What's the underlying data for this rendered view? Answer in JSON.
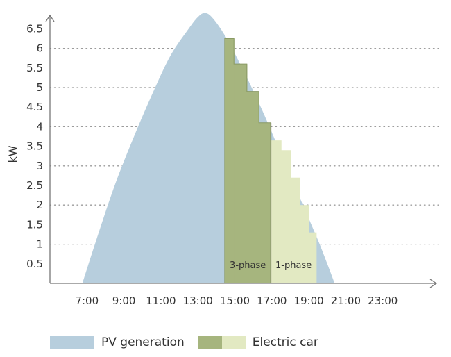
{
  "chart_data": {
    "type": "area",
    "title": "",
    "xlabel": "",
    "ylabel": "kW",
    "xlim": [
      5.0,
      25.0
    ],
    "ylim": [
      0,
      7.0
    ],
    "x_ticks": [
      "7:00",
      "9:00",
      "11:00",
      "13:00",
      "15:00",
      "17:00",
      "19:00",
      "21:00",
      "23:00"
    ],
    "x_tick_values": [
      7,
      9,
      11,
      13,
      15,
      17,
      19,
      21,
      23
    ],
    "y_ticks": [
      0.5,
      1,
      1.5,
      2,
      2.5,
      3,
      3.5,
      4,
      4.5,
      5,
      5.5,
      6,
      6.5
    ],
    "gridlines": [
      1,
      2,
      3,
      4,
      5,
      6
    ],
    "legend_position": "bottom",
    "series": [
      {
        "name": "PV generation",
        "color": "#b7cedd",
        "x": [
          6.75,
          7.5,
          8.5,
          9.5,
          10.5,
          11.5,
          12.5,
          13.0,
          13.35,
          13.75,
          14.5,
          15.5,
          16.5,
          17.5,
          18.5,
          19.5,
          20.0,
          20.4
        ],
        "y": [
          0.0,
          1.1,
          2.5,
          3.7,
          4.8,
          5.8,
          6.5,
          6.8,
          6.9,
          6.8,
          6.3,
          5.4,
          4.4,
          3.3,
          2.2,
          1.1,
          0.5,
          0.0
        ]
      },
      {
        "name": "Electric car",
        "subsets": [
          {
            "label": "3-phase",
            "color": "#a6b57e",
            "steps": [
              {
                "start": 14.45,
                "end": 14.95,
                "value": 6.25
              },
              {
                "start": 14.95,
                "end": 15.65,
                "value": 5.6
              },
              {
                "start": 15.65,
                "end": 16.3,
                "value": 4.9
              },
              {
                "start": 16.3,
                "end": 16.95,
                "value": 4.1
              }
            ]
          },
          {
            "label": "1-phase",
            "color": "#e2e9c2",
            "steps": [
              {
                "start": 16.95,
                "end": 17.5,
                "value": 3.65
              },
              {
                "start": 17.5,
                "end": 18.0,
                "value": 3.4
              },
              {
                "start": 18.0,
                "end": 18.5,
                "value": 2.7
              },
              {
                "start": 18.5,
                "end": 19.0,
                "value": 2.0
              },
              {
                "start": 19.0,
                "end": 19.4,
                "value": 1.3
              }
            ]
          }
        ]
      }
    ],
    "legend": [
      {
        "label": "PV generation",
        "swatches": [
          "#b7cedd"
        ]
      },
      {
        "label": "Electric car",
        "swatches": [
          "#a6b57e",
          "#e2e9c2"
        ]
      }
    ]
  }
}
